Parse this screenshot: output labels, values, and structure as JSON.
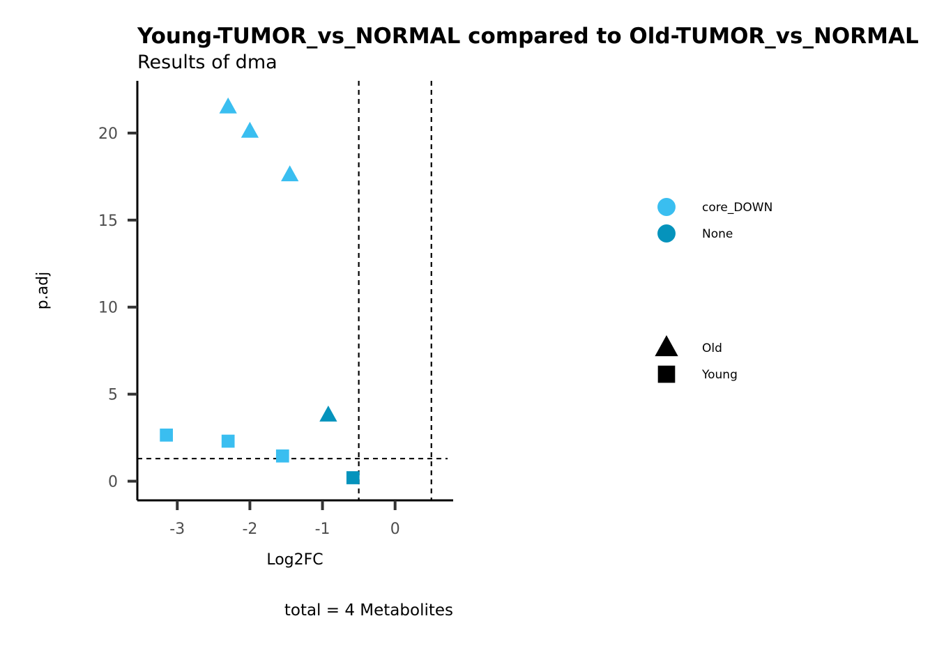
{
  "chart_data": {
    "type": "scatter",
    "title": "Young-TUMOR_vs_NORMAL compared to Old-TUMOR_vs_NORMAL",
    "subtitle": "Results of dma",
    "xlabel": "Log2FC",
    "ylabel": "p.adj",
    "caption": "total = 4 Metabolites",
    "xlim": [
      -3.55,
      0.8
    ],
    "ylim": [
      -1.1,
      23
    ],
    "x_ticks": [
      -3,
      -2,
      -1,
      0
    ],
    "y_ticks": [
      0,
      5,
      10,
      15,
      20
    ],
    "grid": false,
    "thresholds": {
      "vlines": [
        -0.5,
        0.5
      ],
      "hline": 1.3
    },
    "colors": {
      "core_DOWN": "#3ABEF0",
      "None": "#0593BC"
    },
    "legend": {
      "placement": "right",
      "color_entries": [
        "core_DOWN",
        "None"
      ],
      "shape_entries": [
        "Old",
        "Young"
      ]
    },
    "points": [
      {
        "x": -2.3,
        "y": 21.5,
        "group": "core_DOWN",
        "shape": "Old"
      },
      {
        "x": -2.0,
        "y": 20.1,
        "group": "core_DOWN",
        "shape": "Old"
      },
      {
        "x": -1.45,
        "y": 17.6,
        "group": "core_DOWN",
        "shape": "Old"
      },
      {
        "x": -0.92,
        "y": 3.8,
        "group": "None",
        "shape": "Old"
      },
      {
        "x": -3.15,
        "y": 2.65,
        "group": "core_DOWN",
        "shape": "Young"
      },
      {
        "x": -2.3,
        "y": 2.3,
        "group": "core_DOWN",
        "shape": "Young"
      },
      {
        "x": -1.55,
        "y": 1.45,
        "group": "core_DOWN",
        "shape": "Young"
      },
      {
        "x": -0.58,
        "y": 0.2,
        "group": "None",
        "shape": "Young"
      }
    ]
  }
}
